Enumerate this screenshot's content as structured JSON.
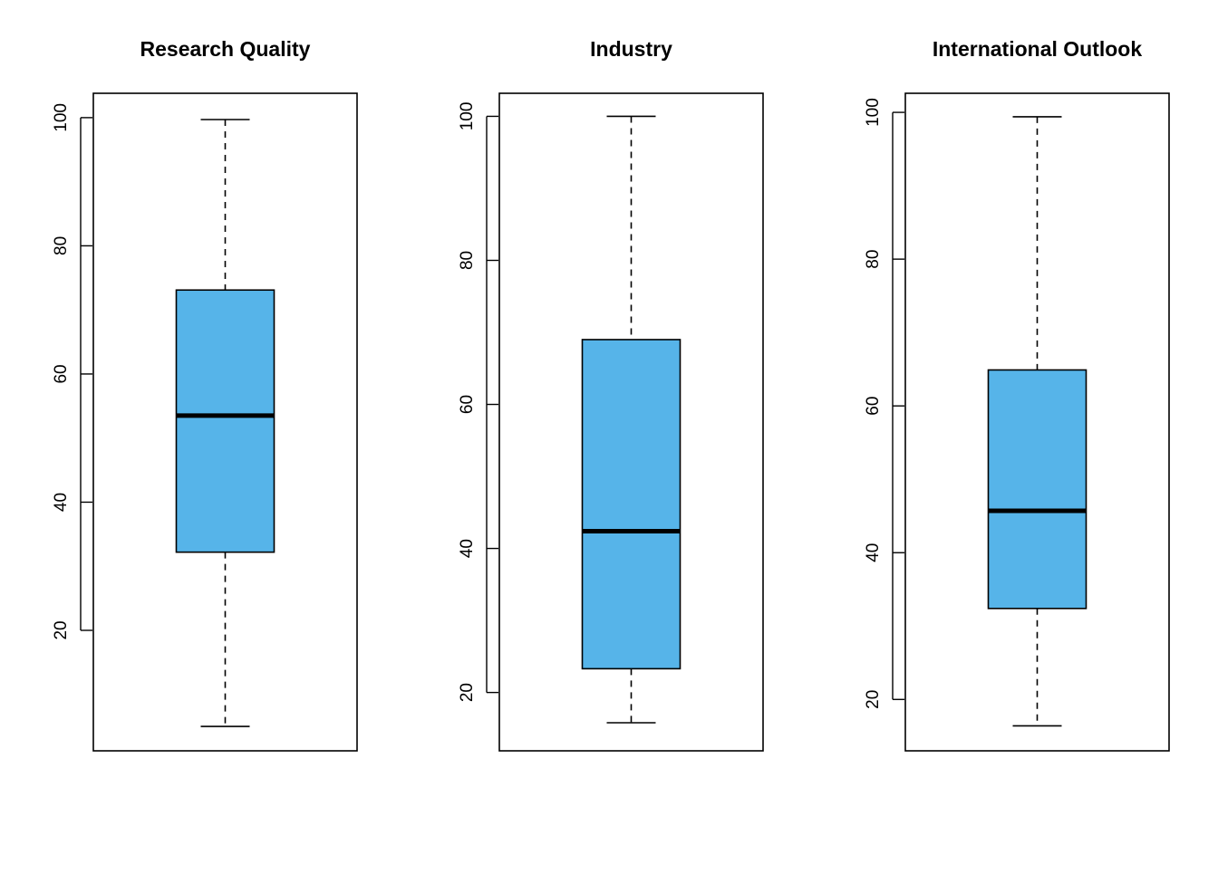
{
  "chart_data": [
    {
      "type": "box",
      "title": "Research Quality",
      "ylim": [
        1.2,
        103.8
      ],
      "yticks": [
        20,
        40,
        60,
        80,
        100
      ],
      "ytick_labels": [
        "20",
        "40",
        "60",
        "80",
        "100"
      ],
      "box": {
        "min": 5.0,
        "q1": 32.2,
        "median": 53.5,
        "q3": 73.1,
        "max": 99.7
      },
      "fill_color": "#56B4E9"
    },
    {
      "type": "box",
      "title": "Industry",
      "ylim": [
        11.9,
        103.2
      ],
      "yticks": [
        20,
        40,
        60,
        80,
        100
      ],
      "ytick_labels": [
        "20",
        "40",
        "60",
        "80",
        "100"
      ],
      "box": {
        "min": 15.8,
        "q1": 23.3,
        "median": 42.4,
        "q3": 69.0,
        "max": 100.0
      },
      "fill_color": "#56B4E9"
    },
    {
      "type": "box",
      "title": "International Outlook",
      "ylim": [
        13.0,
        102.6
      ],
      "yticks": [
        20,
        40,
        60,
        80,
        100
      ],
      "ytick_labels": [
        "20",
        "40",
        "60",
        "80",
        "100"
      ],
      "box": {
        "min": 16.4,
        "q1": 32.4,
        "median": 45.7,
        "q3": 64.9,
        "max": 99.4
      },
      "fill_color": "#56B4E9"
    }
  ]
}
